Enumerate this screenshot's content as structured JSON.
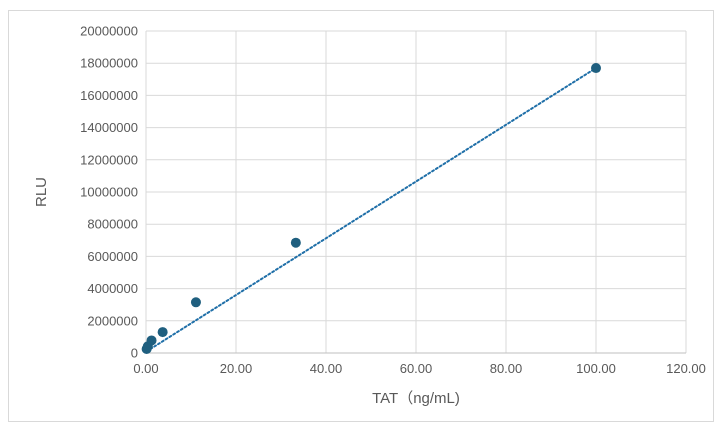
{
  "chart_data": {
    "type": "scatter",
    "title": "",
    "xlabel": "TAT（ng/mL)",
    "ylabel": "RLU",
    "xlim": [
      0,
      120
    ],
    "ylim": [
      0,
      20000000
    ],
    "x_ticks": [
      "0.00",
      "20.00",
      "40.00",
      "60.00",
      "80.00",
      "100.00",
      "120.00"
    ],
    "y_ticks": [
      "0",
      "2000000",
      "4000000",
      "6000000",
      "8000000",
      "10000000",
      "12000000",
      "14000000",
      "16000000",
      "18000000",
      "20000000"
    ],
    "grid": true,
    "legend": "none",
    "series": [
      {
        "x": [
          0.14,
          0.41,
          1.23,
          3.7,
          11.1,
          33.3,
          100
        ],
        "y": [
          250000,
          420000,
          780000,
          1300000,
          3150000,
          6850000,
          17700000
        ],
        "color": "#1f5f7f"
      }
    ],
    "trendline": {
      "type": "linear",
      "style": "dotted",
      "x": [
        0.14,
        100
      ],
      "y": [
        100000,
        17700000
      ],
      "color": "#1f6fa8"
    }
  }
}
